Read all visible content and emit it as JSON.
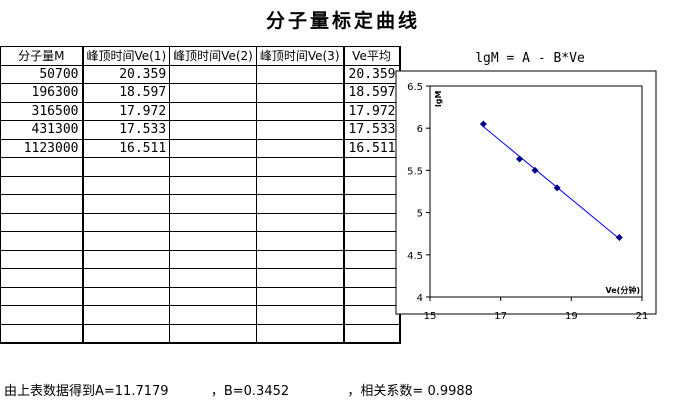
{
  "page": {
    "title": "分子量标定曲线"
  },
  "table": {
    "headers": [
      "分子量M",
      "峰顶时间Ve(1)",
      "峰顶时间Ve(2)",
      "峰顶时间Ve(3)",
      "Ve平均"
    ],
    "rows": [
      [
        "50700",
        "20.359",
        "",
        "",
        "20.359"
      ],
      [
        "196300",
        "18.597",
        "",
        "",
        "18.597"
      ],
      [
        "316500",
        "17.972",
        "",
        "",
        "17.972"
      ],
      [
        "431300",
        "17.533",
        "",
        "",
        "17.533"
      ],
      [
        "1123000",
        "16.511",
        "",
        "",
        "16.511"
      ],
      [
        "",
        "",
        "",
        "",
        ""
      ],
      [
        "",
        "",
        "",
        "",
        ""
      ],
      [
        "",
        "",
        "",
        "",
        ""
      ],
      [
        "",
        "",
        "",
        "",
        ""
      ],
      [
        "",
        "",
        "",
        "",
        ""
      ],
      [
        "",
        "",
        "",
        "",
        ""
      ],
      [
        "",
        "",
        "",
        "",
        ""
      ],
      [
        "",
        "",
        "",
        "",
        ""
      ],
      [
        "",
        "",
        "",
        "",
        ""
      ],
      [
        "",
        "",
        "",
        "",
        ""
      ]
    ]
  },
  "chart_data": {
    "type": "scatter",
    "title": "lgM = A - B*Ve",
    "ylabel": "lgM",
    "xlabel": "Ve(分钟)",
    "xlim": [
      15,
      21
    ],
    "ylim": [
      4,
      6.5
    ],
    "xticks": [
      "15",
      "17",
      "19",
      "21"
    ],
    "yticks": [
      "4",
      "4.5",
      "5",
      "5.5",
      "6",
      "6.5"
    ],
    "grid": false,
    "points": [
      {
        "x": 16.511,
        "y": 6.05
      },
      {
        "x": 17.533,
        "y": 5.635
      },
      {
        "x": 17.972,
        "y": 5.5
      },
      {
        "x": 18.597,
        "y": 5.293
      },
      {
        "x": 20.359,
        "y": 4.705
      }
    ],
    "fit_line": {
      "x": [
        16.511,
        20.359
      ],
      "y": [
        6.0183,
        4.6899
      ]
    },
    "marker_color": "#000080",
    "line_color": "#0000FF"
  },
  "footer": {
    "intro": "由上表数据得到A=11.7179",
    "b_text": "，B=0.3452",
    "r_text": "，相关系数=  0.9988"
  }
}
